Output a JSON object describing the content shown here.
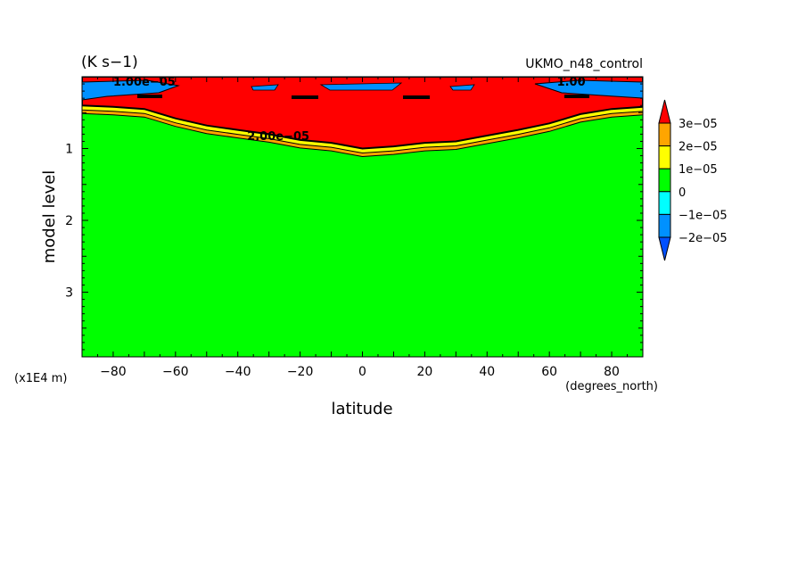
{
  "chart_data": {
    "type": "heatmap",
    "units": "(K s−1)",
    "title_right": "UKMO_n48_control",
    "xlabel": "latitude",
    "ylabel": "model level",
    "x_units": "(degrees_north)",
    "y_scale_note": "(x1E4 m)",
    "xlim": [
      -90,
      90
    ],
    "ylim": [
      0,
      3.9
    ],
    "y_inverted": true,
    "xticks": [
      -80,
      -60,
      -40,
      -20,
      0,
      20,
      40,
      60,
      80
    ],
    "xtick_labels": [
      "−80",
      "−60",
      "−40",
      "−20",
      "0",
      "20",
      "40",
      "60",
      "80"
    ],
    "yticks": [
      1,
      2,
      3
    ],
    "ytick_labels": [
      "1",
      "2",
      "3"
    ],
    "contour_labels": [
      {
        "text": "1.00e−05",
        "x": -70,
        "y": 0.06
      },
      {
        "text": "1.00",
        "x": 67,
        "y": 0.06
      },
      {
        "text": "2.00e−05",
        "x": -27,
        "y": 0.82
      }
    ],
    "warm_region_boundary": {
      "lat": [
        -90,
        -80,
        -70,
        -60,
        -50,
        -40,
        -30,
        -20,
        -10,
        0,
        10,
        20,
        30,
        40,
        50,
        60,
        70,
        80,
        90
      ],
      "level": [
        0.4,
        0.42,
        0.45,
        0.58,
        0.68,
        0.74,
        0.8,
        0.88,
        0.92,
        1.0,
        0.97,
        0.92,
        0.9,
        0.82,
        0.74,
        0.65,
        0.52,
        0.45,
        0.42
      ]
    },
    "colorbar": {
      "labels": [
        "3e−05",
        "2e−05",
        "1e−05",
        "0",
        "−1e−05",
        "−2e−05"
      ],
      "colors": [
        "#ff0000",
        "#ffa500",
        "#ffff00",
        "#00ff00",
        "#00ffff",
        "#0091ff",
        "#0050ff"
      ]
    }
  }
}
